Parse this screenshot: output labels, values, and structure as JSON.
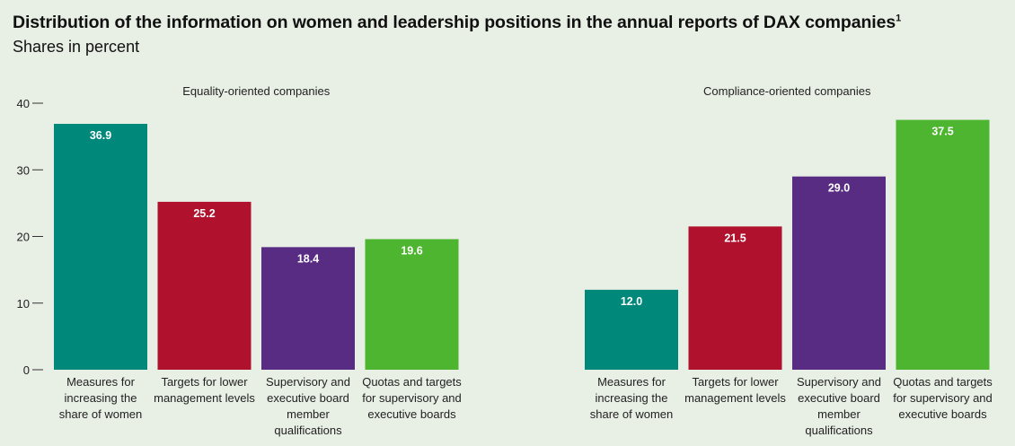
{
  "header": {
    "title": "Distribution of the information on women and leadership positions in the annual reports of DAX companies",
    "footnote_mark": "1",
    "subtitle": "Shares in percent"
  },
  "chart_data": {
    "type": "bar",
    "ylim": [
      0,
      40
    ],
    "yticks": [
      "0",
      "10",
      "20",
      "30",
      "40"
    ],
    "grid": false,
    "colors": [
      "#00897b",
      "#b0122e",
      "#582c83",
      "#4db52f"
    ],
    "panels": [
      {
        "title": "Equality-oriented companies",
        "categories": [
          [
            "Measures for",
            "increasing the",
            "share of women"
          ],
          [
            "Targets for lower",
            "management levels"
          ],
          [
            "Supervisory and",
            "executive board",
            "member",
            "qualifications"
          ],
          [
            "Quotas and targets",
            "for supervisory and",
            "executive boards"
          ]
        ],
        "values": [
          36.9,
          25.2,
          18.4,
          19.6
        ],
        "labels": [
          "36.9",
          "25.2",
          "18.4",
          "19.6"
        ]
      },
      {
        "title": "Compliance-oriented companies",
        "categories": [
          [
            "Measures for",
            "increasing the",
            "share of women"
          ],
          [
            "Targets for lower",
            "management levels"
          ],
          [
            "Supervisory and",
            "executive board",
            "member",
            "qualifications"
          ],
          [
            "Quotas and targets",
            "for supervisory and",
            "executive boards"
          ]
        ],
        "values": [
          12.0,
          21.5,
          29.0,
          37.5
        ],
        "labels": [
          "12.0",
          "21.5",
          "29.0",
          "37.5"
        ]
      }
    ]
  }
}
